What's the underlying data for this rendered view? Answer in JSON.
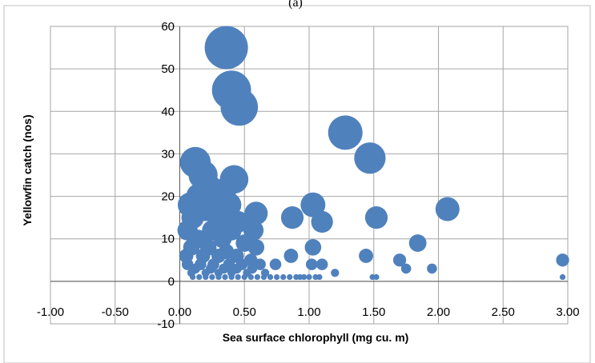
{
  "chart_data": {
    "type": "scatter",
    "title": "(a)",
    "xlabel": "Sea surface chlorophyll (mg cu. m)",
    "ylabel": "Yellowfin catch (nos)",
    "xlim": [
      -1.0,
      3.0
    ],
    "ylim": [
      -10,
      60
    ],
    "x_ticks": [
      "-1.00",
      "-0.50",
      "0.00",
      "0.50",
      "1.00",
      "1.50",
      "2.00",
      "2.50",
      "3.00"
    ],
    "y_ticks": [
      "-10",
      "0",
      "10",
      "20",
      "30",
      "40",
      "50",
      "60"
    ],
    "grid": true,
    "legend": "none",
    "marker_color": "#4f81bd",
    "bubble_size": "proportional to catch",
    "points": [
      {
        "x": 0.36,
        "y": 55
      },
      {
        "x": 0.4,
        "y": 45
      },
      {
        "x": 0.46,
        "y": 41
      },
      {
        "x": 1.28,
        "y": 35
      },
      {
        "x": 1.47,
        "y": 29
      },
      {
        "x": 0.12,
        "y": 28
      },
      {
        "x": 0.42,
        "y": 24
      },
      {
        "x": 0.18,
        "y": 25
      },
      {
        "x": 0.22,
        "y": 22
      },
      {
        "x": 0.28,
        "y": 20
      },
      {
        "x": 0.33,
        "y": 21
      },
      {
        "x": 0.15,
        "y": 20
      },
      {
        "x": 0.08,
        "y": 18
      },
      {
        "x": 0.38,
        "y": 18
      },
      {
        "x": 0.2,
        "y": 17
      },
      {
        "x": 2.07,
        "y": 17
      },
      {
        "x": 1.03,
        "y": 18
      },
      {
        "x": 0.59,
        "y": 16
      },
      {
        "x": 0.1,
        "y": 15
      },
      {
        "x": 0.3,
        "y": 15
      },
      {
        "x": 0.45,
        "y": 14
      },
      {
        "x": 0.87,
        "y": 15
      },
      {
        "x": 1.52,
        "y": 15
      },
      {
        "x": 1.1,
        "y": 14
      },
      {
        "x": 0.06,
        "y": 12
      },
      {
        "x": 0.25,
        "y": 12
      },
      {
        "x": 0.4,
        "y": 12
      },
      {
        "x": 0.57,
        "y": 12
      },
      {
        "x": 0.14,
        "y": 10
      },
      {
        "x": 0.33,
        "y": 10
      },
      {
        "x": 0.5,
        "y": 9
      },
      {
        "x": 1.84,
        "y": 9
      },
      {
        "x": 0.09,
        "y": 8
      },
      {
        "x": 0.22,
        "y": 8
      },
      {
        "x": 0.36,
        "y": 7
      },
      {
        "x": 0.59,
        "y": 8
      },
      {
        "x": 1.03,
        "y": 8
      },
      {
        "x": 0.05,
        "y": 6
      },
      {
        "x": 0.18,
        "y": 6
      },
      {
        "x": 0.3,
        "y": 6
      },
      {
        "x": 0.44,
        "y": 6
      },
      {
        "x": 0.86,
        "y": 6
      },
      {
        "x": 1.44,
        "y": 6
      },
      {
        "x": 0.55,
        "y": 5
      },
      {
        "x": 1.7,
        "y": 5
      },
      {
        "x": 2.96,
        "y": 5
      },
      {
        "x": 0.06,
        "y": 4
      },
      {
        "x": 0.16,
        "y": 4
      },
      {
        "x": 0.26,
        "y": 4
      },
      {
        "x": 0.38,
        "y": 4
      },
      {
        "x": 0.48,
        "y": 4
      },
      {
        "x": 0.62,
        "y": 4
      },
      {
        "x": 0.74,
        "y": 4
      },
      {
        "x": 1.02,
        "y": 4
      },
      {
        "x": 1.1,
        "y": 4
      },
      {
        "x": 0.12,
        "y": 3
      },
      {
        "x": 0.24,
        "y": 3
      },
      {
        "x": 0.34,
        "y": 3
      },
      {
        "x": 0.44,
        "y": 3
      },
      {
        "x": 0.56,
        "y": 3
      },
      {
        "x": 1.75,
        "y": 3
      },
      {
        "x": 1.95,
        "y": 3
      },
      {
        "x": 0.09,
        "y": 2
      },
      {
        "x": 0.2,
        "y": 2
      },
      {
        "x": 0.3,
        "y": 2
      },
      {
        "x": 0.4,
        "y": 2
      },
      {
        "x": 0.52,
        "y": 2
      },
      {
        "x": 0.66,
        "y": 2
      },
      {
        "x": 1.2,
        "y": 2
      },
      {
        "x": 0.1,
        "y": 1
      },
      {
        "x": 0.15,
        "y": 1
      },
      {
        "x": 0.2,
        "y": 1
      },
      {
        "x": 0.25,
        "y": 1
      },
      {
        "x": 0.3,
        "y": 1
      },
      {
        "x": 0.35,
        "y": 1
      },
      {
        "x": 0.4,
        "y": 1
      },
      {
        "x": 0.45,
        "y": 1
      },
      {
        "x": 0.5,
        "y": 1
      },
      {
        "x": 0.55,
        "y": 1
      },
      {
        "x": 0.6,
        "y": 1
      },
      {
        "x": 0.65,
        "y": 1
      },
      {
        "x": 0.7,
        "y": 1
      },
      {
        "x": 0.75,
        "y": 1
      },
      {
        "x": 0.8,
        "y": 1
      },
      {
        "x": 0.85,
        "y": 1
      },
      {
        "x": 0.9,
        "y": 1
      },
      {
        "x": 0.93,
        "y": 1
      },
      {
        "x": 0.96,
        "y": 1
      },
      {
        "x": 1.0,
        "y": 1
      },
      {
        "x": 1.05,
        "y": 1
      },
      {
        "x": 1.08,
        "y": 1
      },
      {
        "x": 1.49,
        "y": 1
      },
      {
        "x": 1.52,
        "y": 1
      },
      {
        "x": 2.96,
        "y": 1
      }
    ]
  }
}
